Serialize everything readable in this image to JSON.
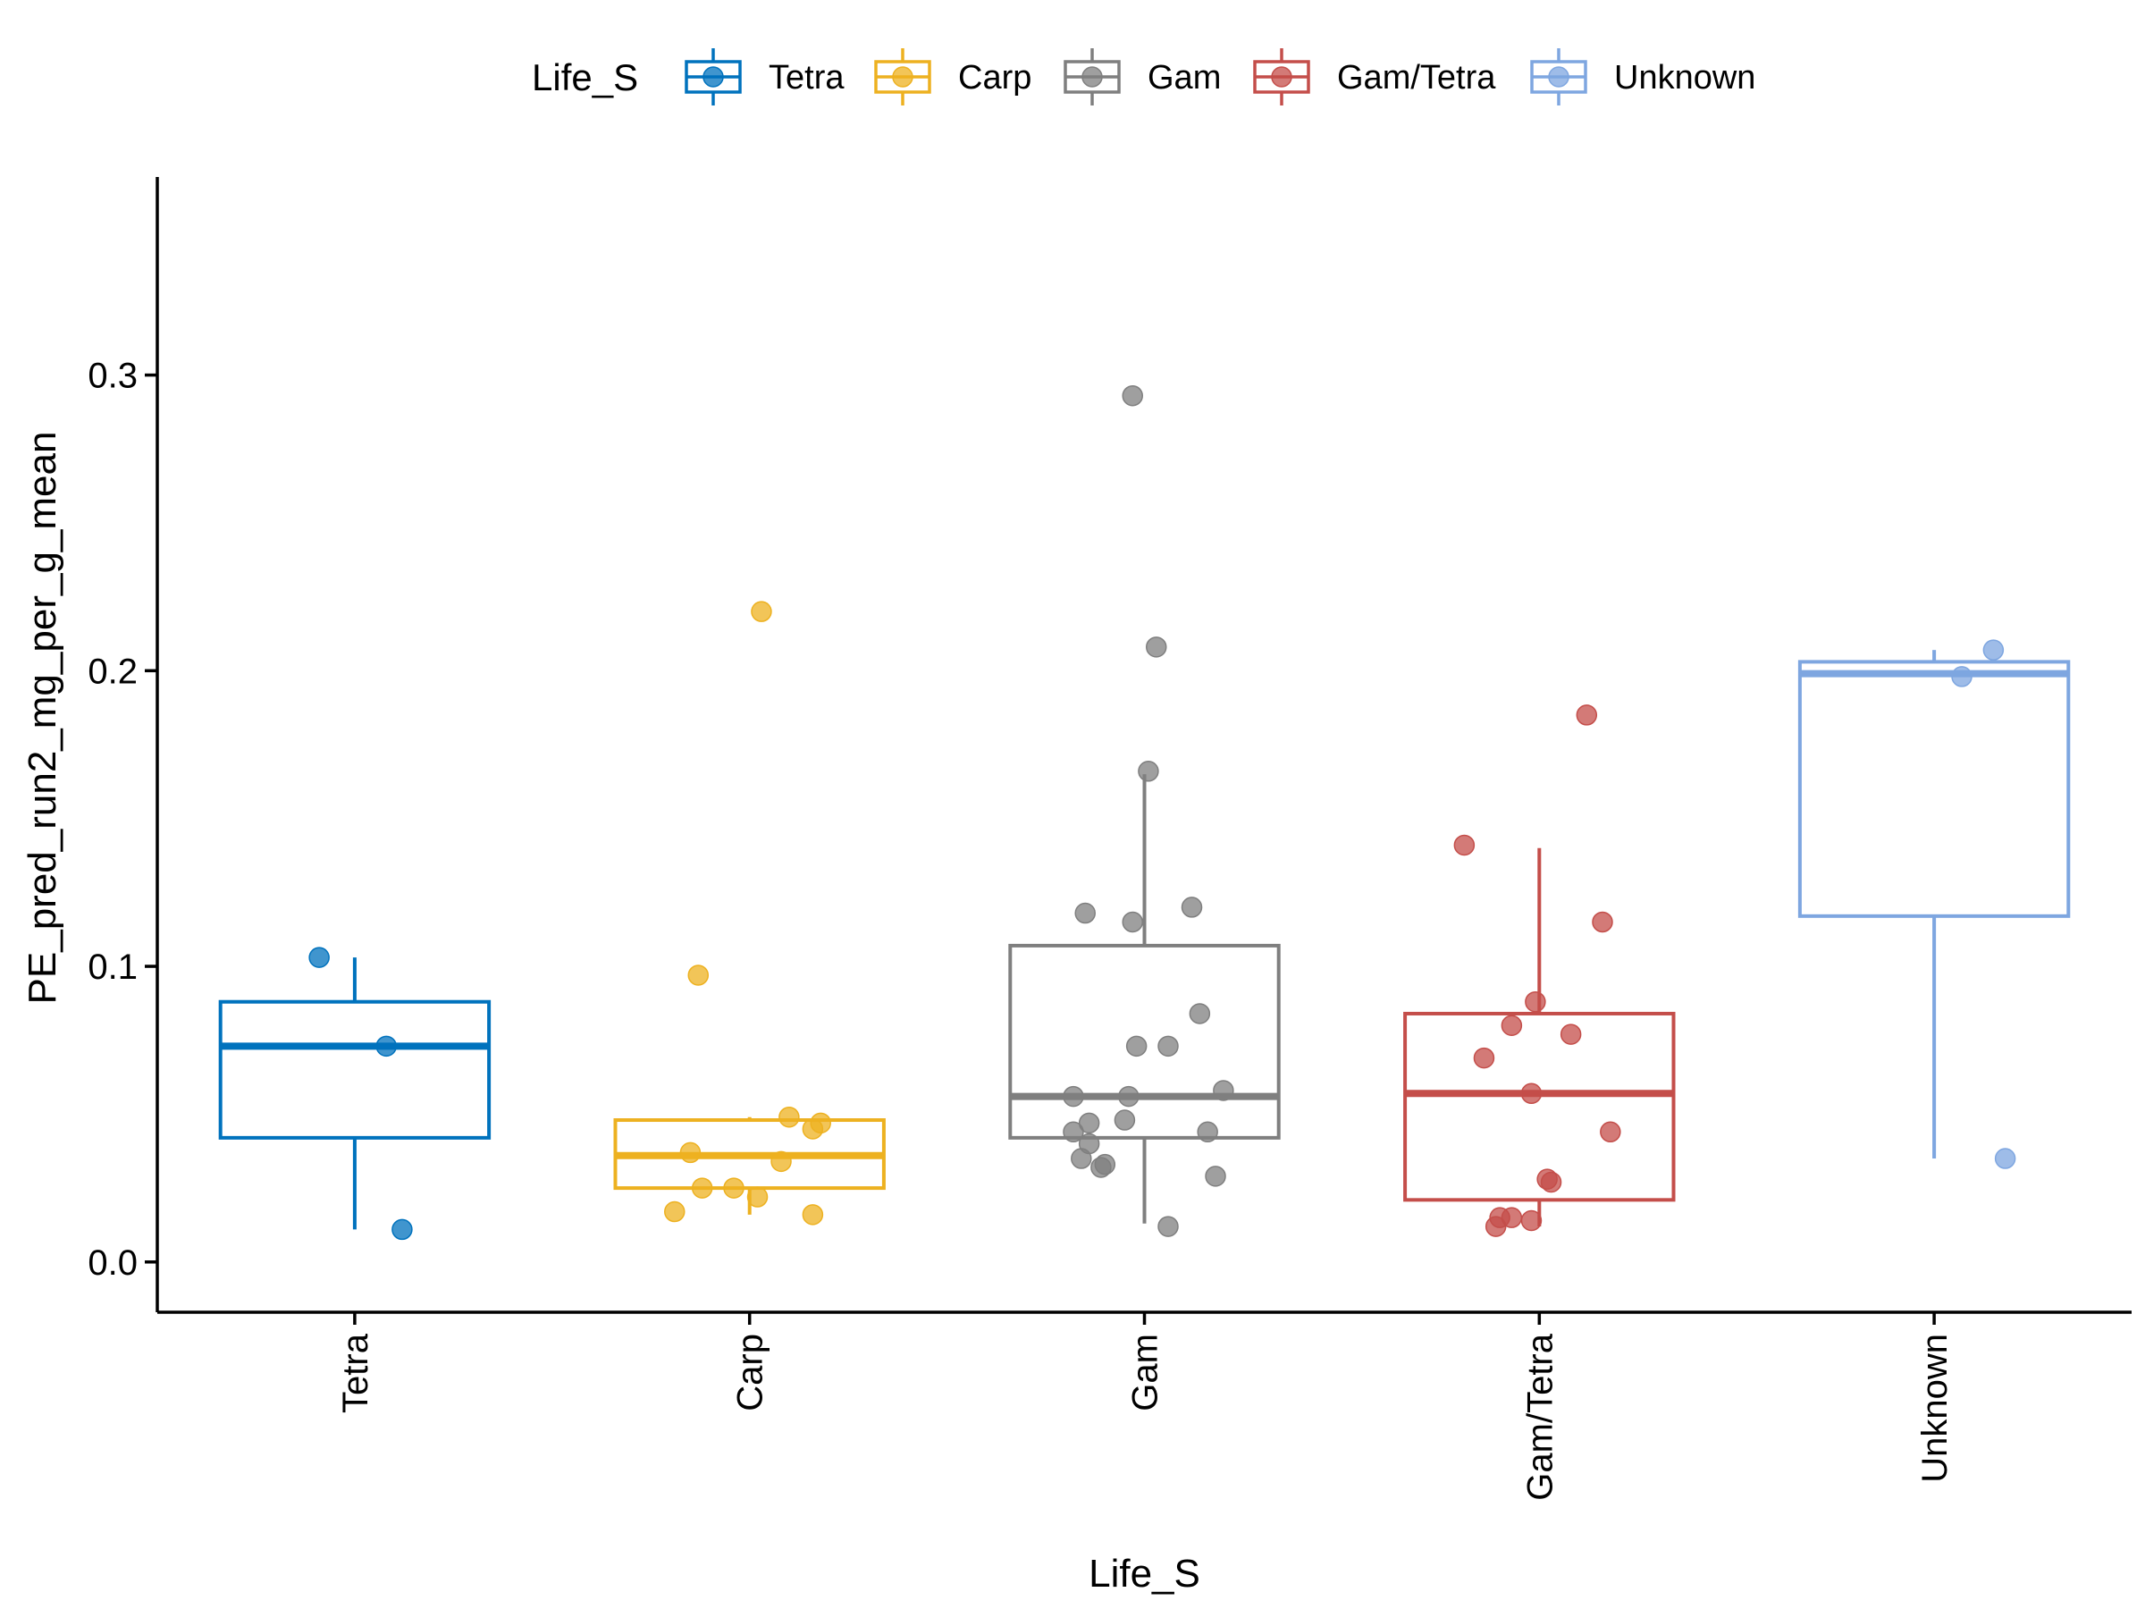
{
  "chart_data": {
    "type": "boxplot",
    "xlabel": "Life_S",
    "ylabel": "PE_pred_run2_mg_per_g_mean",
    "ylim": [
      -0.017,
      0.367
    ],
    "yticks": [
      0.0,
      0.1,
      0.2,
      0.3
    ],
    "ytick_labels": [
      "0.0",
      "0.1",
      "0.2",
      "0.3"
    ],
    "grid": false,
    "legend": {
      "title": "Life_S",
      "position": "top"
    },
    "categories": [
      "Tetra",
      "Carp",
      "Gam",
      "Gam/Tetra",
      "Unknown"
    ],
    "series": [
      {
        "name": "Tetra",
        "color": "#0072BD",
        "box": {
          "q1": 0.042,
          "median": 0.073,
          "q3": 0.088,
          "whisker_low": 0.011,
          "whisker_high": 0.103
        },
        "points": [
          [
            -0.09,
            0.103
          ],
          [
            0.08,
            0.073
          ],
          [
            0.12,
            0.011
          ]
        ]
      },
      {
        "name": "Carp",
        "color": "#EDB120",
        "box": {
          "q1": 0.025,
          "median": 0.036,
          "q3": 0.048,
          "whisker_low": 0.016,
          "whisker_high": 0.049
        },
        "points": [
          [
            0.03,
            0.22
          ],
          [
            -0.13,
            0.097
          ],
          [
            0.1,
            0.049
          ],
          [
            0.18,
            0.047
          ],
          [
            0.16,
            0.045
          ],
          [
            -0.15,
            0.037
          ],
          [
            0.08,
            0.034
          ],
          [
            -0.12,
            0.025
          ],
          [
            -0.04,
            0.025
          ],
          [
            0.02,
            0.022
          ],
          [
            -0.19,
            0.017
          ],
          [
            0.16,
            0.016
          ]
        ]
      },
      {
        "name": "Gam",
        "color": "#7F7F7F",
        "box": {
          "q1": 0.042,
          "median": 0.056,
          "q3": 0.107,
          "whisker_low": 0.013,
          "whisker_high": 0.165
        },
        "points": [
          [
            -0.03,
            0.293
          ],
          [
            0.03,
            0.208
          ],
          [
            0.01,
            0.166
          ],
          [
            0.12,
            0.12
          ],
          [
            -0.15,
            0.118
          ],
          [
            -0.03,
            0.115
          ],
          [
            0.14,
            0.084
          ],
          [
            -0.02,
            0.073
          ],
          [
            0.06,
            0.073
          ],
          [
            0.2,
            0.058
          ],
          [
            -0.18,
            0.056
          ],
          [
            -0.04,
            0.056
          ],
          [
            -0.14,
            0.047
          ],
          [
            -0.05,
            0.048
          ],
          [
            -0.18,
            0.044
          ],
          [
            0.16,
            0.044
          ],
          [
            -0.14,
            0.04
          ],
          [
            -0.16,
            0.035
          ],
          [
            -0.1,
            0.033
          ],
          [
            -0.11,
            0.032
          ],
          [
            0.18,
            0.029
          ],
          [
            0.06,
            0.012
          ]
        ]
      },
      {
        "name": "Gam/Tetra",
        "color": "#C44E4A",
        "box": {
          "q1": 0.021,
          "median": 0.057,
          "q3": 0.084,
          "whisker_low": 0.012,
          "whisker_high": 0.14
        },
        "points": [
          [
            0.12,
            0.185
          ],
          [
            -0.19,
            0.141
          ],
          [
            0.16,
            0.115
          ],
          [
            -0.01,
            0.088
          ],
          [
            -0.07,
            0.08
          ],
          [
            0.08,
            0.077
          ],
          [
            -0.14,
            0.069
          ],
          [
            -0.02,
            0.057
          ],
          [
            0.18,
            0.044
          ],
          [
            0.02,
            0.028
          ],
          [
            0.03,
            0.027
          ],
          [
            -0.1,
            0.015
          ],
          [
            -0.07,
            0.015
          ],
          [
            -0.02,
            0.014
          ],
          [
            -0.11,
            0.012
          ]
        ]
      },
      {
        "name": "Unknown",
        "color": "#7EA6E0",
        "box": {
          "q1": 0.117,
          "median": 0.199,
          "q3": 0.203,
          "whisker_low": 0.035,
          "whisker_high": 0.207
        },
        "points": [
          [
            0.15,
            0.207
          ],
          [
            0.07,
            0.198
          ],
          [
            0.18,
            0.035
          ]
        ]
      }
    ]
  }
}
